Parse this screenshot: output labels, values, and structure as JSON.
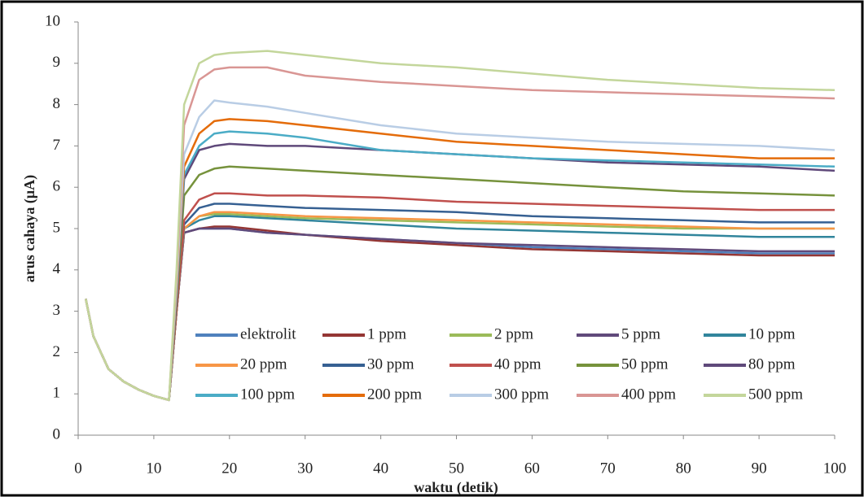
{
  "chart_data": {
    "type": "line",
    "x_label": "waktu (detik)",
    "y_label": "arus cahaya (µA)",
    "x": [
      1,
      2,
      4,
      6,
      8,
      10,
      12,
      13,
      14,
      16,
      18,
      20,
      25,
      30,
      40,
      50,
      60,
      70,
      80,
      90,
      100
    ],
    "xlim": [
      0,
      100
    ],
    "xticks": [
      0,
      10,
      20,
      30,
      40,
      50,
      60,
      70,
      80,
      90,
      100
    ],
    "ylim": [
      0,
      10
    ],
    "yticks": [
      0,
      1,
      2,
      3,
      4,
      5,
      6,
      7,
      8,
      9,
      10
    ],
    "grid": false,
    "series": [
      {
        "name": "elektrolit",
        "color": "#4f81bd",
        "values": [
          3.3,
          2.4,
          1.6,
          1.3,
          1.1,
          0.95,
          0.85,
          3.0,
          4.9,
          5.0,
          5.0,
          5.0,
          4.9,
          4.85,
          4.75,
          4.65,
          4.55,
          4.5,
          4.45,
          4.4,
          4.4
        ]
      },
      {
        "name": "1 ppm",
        "color": "#943634",
        "values": [
          3.3,
          2.4,
          1.6,
          1.3,
          1.1,
          0.95,
          0.85,
          3.0,
          4.9,
          5.0,
          5.05,
          5.05,
          4.95,
          4.85,
          4.7,
          4.6,
          4.5,
          4.45,
          4.4,
          4.35,
          4.35
        ]
      },
      {
        "name": "2 ppm",
        "color": "#9bbb59",
        "values": [
          3.3,
          2.4,
          1.6,
          1.3,
          1.1,
          0.95,
          0.85,
          3.0,
          5.0,
          5.3,
          5.35,
          5.35,
          5.3,
          5.25,
          5.2,
          5.15,
          5.1,
          5.05,
          5.0,
          5.0,
          5.0
        ]
      },
      {
        "name": "5 ppm",
        "color": "#604a7b",
        "values": [
          3.3,
          2.4,
          1.6,
          1.3,
          1.1,
          0.95,
          0.85,
          3.0,
          4.9,
          5.0,
          5.0,
          5.0,
          4.9,
          4.85,
          4.75,
          4.65,
          4.6,
          4.55,
          4.5,
          4.45,
          4.45
        ]
      },
      {
        "name": "10 ppm",
        "color": "#31859c",
        "values": [
          3.3,
          2.4,
          1.6,
          1.3,
          1.1,
          0.95,
          0.85,
          3.0,
          5.0,
          5.2,
          5.3,
          5.3,
          5.25,
          5.2,
          5.1,
          5.0,
          4.95,
          4.9,
          4.85,
          4.8,
          4.8
        ]
      },
      {
        "name": "20 ppm",
        "color": "#f79646",
        "values": [
          3.3,
          2.4,
          1.6,
          1.3,
          1.1,
          0.95,
          0.85,
          3.0,
          5.0,
          5.3,
          5.4,
          5.4,
          5.35,
          5.3,
          5.25,
          5.2,
          5.15,
          5.1,
          5.05,
          5.0,
          5.0
        ]
      },
      {
        "name": "30 ppm",
        "color": "#366092",
        "values": [
          3.3,
          2.4,
          1.6,
          1.3,
          1.1,
          0.95,
          0.85,
          3.0,
          5.1,
          5.5,
          5.6,
          5.6,
          5.55,
          5.5,
          5.45,
          5.4,
          5.3,
          5.25,
          5.2,
          5.15,
          5.15
        ]
      },
      {
        "name": "40 ppm",
        "color": "#c0504d",
        "values": [
          3.3,
          2.4,
          1.6,
          1.3,
          1.1,
          0.95,
          0.85,
          3.0,
          5.2,
          5.7,
          5.85,
          5.85,
          5.8,
          5.8,
          5.75,
          5.65,
          5.6,
          5.55,
          5.5,
          5.45,
          5.45
        ]
      },
      {
        "name": "50 ppm",
        "color": "#76923c",
        "values": [
          3.3,
          2.4,
          1.6,
          1.3,
          1.1,
          0.95,
          0.85,
          3.2,
          5.8,
          6.3,
          6.45,
          6.5,
          6.45,
          6.4,
          6.3,
          6.2,
          6.1,
          6.0,
          5.9,
          5.85,
          5.8
        ]
      },
      {
        "name": "80 ppm",
        "color": "#5f497a",
        "values": [
          3.3,
          2.4,
          1.6,
          1.3,
          1.1,
          0.95,
          0.85,
          3.3,
          6.2,
          6.9,
          7.0,
          7.05,
          7.0,
          7.0,
          6.9,
          6.8,
          6.7,
          6.6,
          6.55,
          6.5,
          6.4
        ]
      },
      {
        "name": "100 ppm",
        "color": "#4bacc6",
        "values": [
          3.3,
          2.4,
          1.6,
          1.3,
          1.1,
          0.95,
          0.85,
          3.4,
          6.3,
          7.0,
          7.3,
          7.35,
          7.3,
          7.2,
          6.9,
          6.8,
          6.7,
          6.65,
          6.6,
          6.55,
          6.5
        ]
      },
      {
        "name": "200 ppm",
        "color": "#e46c0a",
        "values": [
          3.3,
          2.4,
          1.6,
          1.3,
          1.1,
          0.95,
          0.85,
          3.5,
          6.5,
          7.3,
          7.6,
          7.65,
          7.6,
          7.5,
          7.3,
          7.1,
          7.0,
          6.9,
          6.8,
          6.7,
          6.7
        ]
      },
      {
        "name": "300 ppm",
        "color": "#b9cde5",
        "values": [
          3.3,
          2.4,
          1.6,
          1.3,
          1.1,
          0.95,
          0.85,
          3.6,
          6.8,
          7.7,
          8.1,
          8.05,
          7.95,
          7.8,
          7.5,
          7.3,
          7.2,
          7.1,
          7.05,
          7.0,
          6.9
        ]
      },
      {
        "name": "400 ppm",
        "color": "#d99694",
        "values": [
          3.3,
          2.4,
          1.6,
          1.3,
          1.1,
          0.95,
          0.85,
          3.8,
          7.5,
          8.6,
          8.85,
          8.9,
          8.9,
          8.7,
          8.55,
          8.45,
          8.35,
          8.3,
          8.25,
          8.2,
          8.15
        ]
      },
      {
        "name": "500 ppm",
        "color": "#c3d69b",
        "values": [
          3.3,
          2.4,
          1.6,
          1.3,
          1.1,
          0.95,
          0.85,
          4.0,
          8.0,
          9.0,
          9.2,
          9.25,
          9.3,
          9.2,
          9.0,
          8.9,
          8.75,
          8.6,
          8.5,
          8.4,
          8.35
        ]
      }
    ]
  }
}
